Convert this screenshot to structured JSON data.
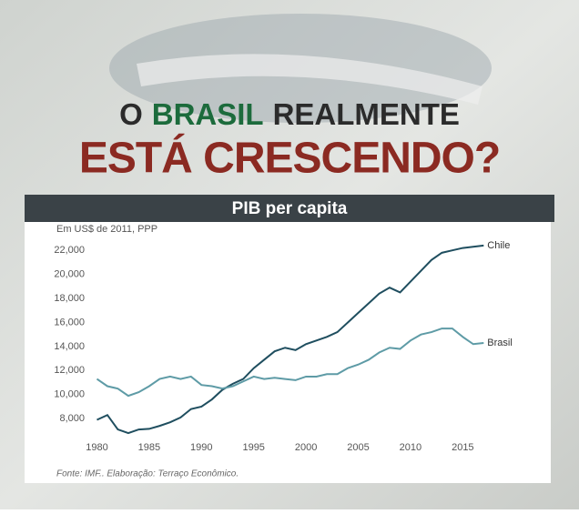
{
  "headline": {
    "line1": [
      "O",
      "BRASIL",
      "REALMENTE"
    ],
    "line2": "ESTÁ CRESCENDO?"
  },
  "chart_data": {
    "type": "line",
    "title": "PIB per capita",
    "ylabel": "Em US$ de 2011, PPP",
    "source": "Fonte: IMF.. Elaboração: Terraço Econômico.",
    "x": [
      1980,
      1981,
      1982,
      1983,
      1984,
      1985,
      1986,
      1987,
      1988,
      1989,
      1990,
      1991,
      1992,
      1993,
      1994,
      1995,
      1996,
      1997,
      1998,
      1999,
      2000,
      2001,
      2002,
      2003,
      2004,
      2005,
      2006,
      2007,
      2008,
      2009,
      2010,
      2011,
      2012,
      2013,
      2014,
      2015,
      2016,
      2017
    ],
    "series": [
      {
        "name": "Chile",
        "color": "#1f4e5f",
        "values": [
          7900,
          8300,
          7100,
          6800,
          7100,
          7150,
          7400,
          7700,
          8100,
          8800,
          9000,
          9600,
          10400,
          10900,
          11300,
          12200,
          12900,
          13600,
          13900,
          13700,
          14200,
          14500,
          14800,
          15200,
          16000,
          16800,
          17600,
          18400,
          18900,
          18500,
          19400,
          20300,
          21200,
          21800,
          22000,
          22200,
          22300,
          22400
        ]
      },
      {
        "name": "Brasil",
        "color": "#5e9ba6",
        "values": [
          11300,
          10700,
          10500,
          9900,
          10200,
          10700,
          11300,
          11500,
          11300,
          11500,
          10800,
          10700,
          10500,
          10700,
          11100,
          11500,
          11300,
          11400,
          11300,
          11200,
          11500,
          11500,
          11700,
          11700,
          12200,
          12500,
          12900,
          13500,
          13900,
          13800,
          14500,
          15000,
          15200,
          15500,
          15500,
          14800,
          14200,
          14300
        ]
      }
    ],
    "xlim": [
      1979,
      2019.5
    ],
    "xticks": [
      1980,
      1985,
      1990,
      1995,
      2000,
      2005,
      2010,
      2015
    ],
    "ylim": [
      6500,
      23000
    ],
    "yticks": [
      {
        "value": 8000,
        "label": "8,000"
      },
      {
        "value": 10000,
        "label": "10,000"
      },
      {
        "value": 12000,
        "label": "12,000"
      },
      {
        "value": 14000,
        "label": "14,000"
      },
      {
        "value": 16000,
        "label": "16,000"
      },
      {
        "value": 18000,
        "label": "18,000"
      },
      {
        "value": 20000,
        "label": "20,000"
      },
      {
        "value": 22000,
        "label": "22,000"
      }
    ],
    "grid": false
  }
}
